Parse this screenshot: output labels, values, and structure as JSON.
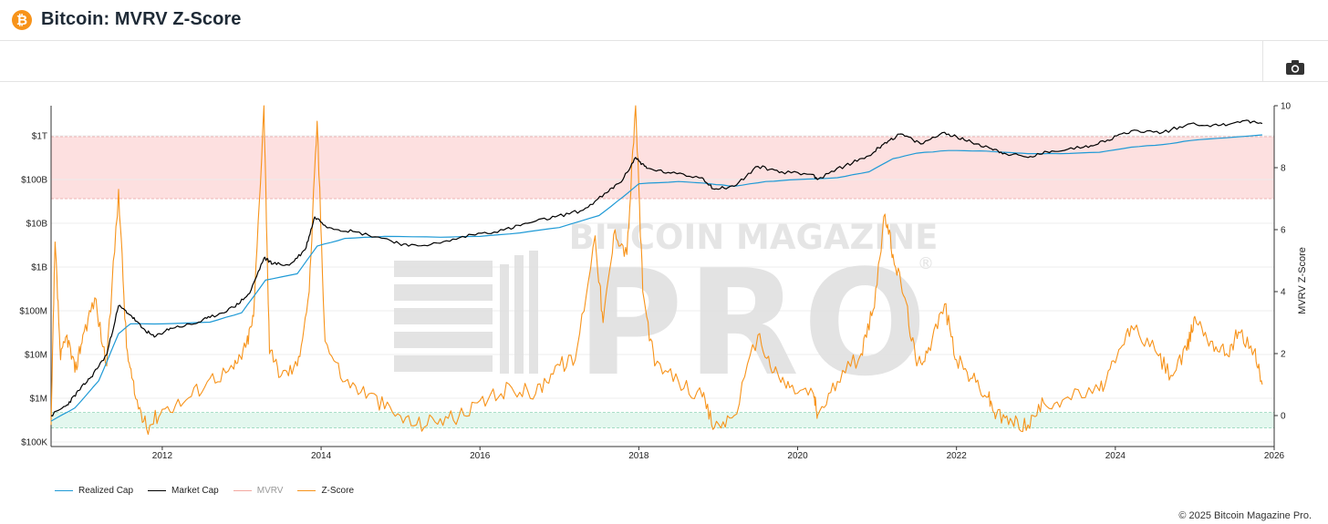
{
  "page": {
    "title": "Bitcoin: MVRV Z-Score",
    "logo_symbol": "₿",
    "logo_color": "#f7931a",
    "camera_icon": "camera-icon",
    "copyright": "© 2025 Bitcoin Magazine Pro."
  },
  "watermark": {
    "line1": "BITCOIN MAGAZINE",
    "line2": "PRO",
    "mark": "®"
  },
  "legend": [
    {
      "label": "Realized Cap",
      "color": "#1f9ad6"
    },
    {
      "label": "Market Cap",
      "color": "#000000"
    },
    {
      "label": "MVRV",
      "color": "#f3a7a0",
      "muted": true
    },
    {
      "label": "Z-Score",
      "color": "#f7931a"
    }
  ],
  "chart_data": {
    "type": "line",
    "left_axis": {
      "scale": "log",
      "ticks": [
        {
          "value": 100000.0,
          "label": "$100K"
        },
        {
          "value": 1000000.0,
          "label": "$1M"
        },
        {
          "value": 10000000.0,
          "label": "$10M"
        },
        {
          "value": 100000000.0,
          "label": "$100M"
        },
        {
          "value": 1000000000.0,
          "label": "$1B"
        },
        {
          "value": 10000000000.0,
          "label": "$10B"
        },
        {
          "value": 100000000000.0,
          "label": "$100B"
        },
        {
          "value": 1000000000000.0,
          "label": "$1T"
        }
      ]
    },
    "right_axis": {
      "title": "MVRV Z-Score",
      "range": [
        -1,
        10
      ],
      "ticks": [
        0,
        2,
        4,
        6,
        8,
        10
      ]
    },
    "x_axis": {
      "range": [
        2010.6,
        2026.0
      ],
      "ticks": [
        2012,
        2014,
        2016,
        2018,
        2020,
        2022,
        2024,
        2026
      ]
    },
    "bands": [
      {
        "name": "overvalued",
        "from": 7,
        "to": 9,
        "color": "#fde0e0"
      },
      {
        "name": "undervalued",
        "from": -0.4,
        "to": 0.1,
        "color": "#e3f7ee"
      }
    ],
    "series": [
      {
        "name": "Market Cap",
        "color": "#000000",
        "axis": "left",
        "points": [
          [
            2010.6,
            400000.0
          ],
          [
            2010.8,
            700000.0
          ],
          [
            2010.95,
            1500000.0
          ],
          [
            2011.1,
            3000000.0
          ],
          [
            2011.3,
            10000000.0
          ],
          [
            2011.45,
            130000000.0
          ],
          [
            2011.6,
            80000000.0
          ],
          [
            2011.75,
            40000000.0
          ],
          [
            2011.9,
            25000000.0
          ],
          [
            2012.1,
            40000000.0
          ],
          [
            2012.4,
            50000000.0
          ],
          [
            2012.6,
            70000000.0
          ],
          [
            2012.9,
            120000000.0
          ],
          [
            2013.1,
            250000000.0
          ],
          [
            2013.28,
            1600000000.0
          ],
          [
            2013.4,
            1200000000.0
          ],
          [
            2013.6,
            1100000000.0
          ],
          [
            2013.8,
            2500000000.0
          ],
          [
            2013.92,
            14000000000.0
          ],
          [
            2014.1,
            8000000000.0
          ],
          [
            2014.4,
            6500000000.0
          ],
          [
            2014.8,
            4500000000.0
          ],
          [
            2015.1,
            3000000000.0
          ],
          [
            2015.5,
            3500000000.0
          ],
          [
            2015.9,
            5500000000.0
          ],
          [
            2016.3,
            7000000000.0
          ],
          [
            2016.6,
            10000000000.0
          ],
          [
            2016.95,
            14000000000.0
          ],
          [
            2017.3,
            20000000000.0
          ],
          [
            2017.6,
            50000000000.0
          ],
          [
            2017.8,
            100000000000.0
          ],
          [
            2017.96,
            320000000000.0
          ],
          [
            2018.1,
            180000000000.0
          ],
          [
            2018.4,
            140000000000.0
          ],
          [
            2018.8,
            110000000000.0
          ],
          [
            2018.95,
            60000000000.0
          ],
          [
            2019.2,
            70000000000.0
          ],
          [
            2019.5,
            200000000000.0
          ],
          [
            2019.8,
            150000000000.0
          ],
          [
            2020.2,
            130000000000.0
          ],
          [
            2020.25,
            100000000000.0
          ],
          [
            2020.6,
            210000000000.0
          ],
          [
            2020.9,
            350000000000.0
          ],
          [
            2021.1,
            700000000000.0
          ],
          [
            2021.3,
            1100000000000.0
          ],
          [
            2021.55,
            650000000000.0
          ],
          [
            2021.85,
            1200000000000.0
          ],
          [
            2022.1,
            800000000000.0
          ],
          [
            2022.4,
            550000000000.0
          ],
          [
            2022.6,
            400000000000.0
          ],
          [
            2022.9,
            320000000000.0
          ],
          [
            2023.2,
            450000000000.0
          ],
          [
            2023.6,
            550000000000.0
          ],
          [
            2023.9,
            800000000000.0
          ],
          [
            2024.2,
            1300000000000.0
          ],
          [
            2024.6,
            1200000000000.0
          ],
          [
            2024.95,
            1900000000000.0
          ],
          [
            2025.3,
            1700000000000.0
          ],
          [
            2025.6,
            2200000000000.0
          ],
          [
            2025.85,
            1900000000000.0
          ]
        ]
      },
      {
        "name": "Realized Cap",
        "color": "#1f9ad6",
        "axis": "left",
        "points": [
          [
            2010.6,
            300000.0
          ],
          [
            2010.9,
            600000.0
          ],
          [
            2011.2,
            2500000.0
          ],
          [
            2011.45,
            30000000.0
          ],
          [
            2011.6,
            50000000.0
          ],
          [
            2012.0,
            50000000.0
          ],
          [
            2012.6,
            55000000.0
          ],
          [
            2013.0,
            90000000.0
          ],
          [
            2013.3,
            500000000.0
          ],
          [
            2013.7,
            700000000.0
          ],
          [
            2013.95,
            3000000000.0
          ],
          [
            2014.3,
            4500000000.0
          ],
          [
            2014.8,
            5000000000.0
          ],
          [
            2015.5,
            4800000000.0
          ],
          [
            2016.0,
            5000000000.0
          ],
          [
            2016.5,
            6000000000.0
          ],
          [
            2017.0,
            8000000000.0
          ],
          [
            2017.5,
            15000000000.0
          ],
          [
            2017.8,
            40000000000.0
          ],
          [
            2018.0,
            80000000000.0
          ],
          [
            2018.5,
            90000000000.0
          ],
          [
            2018.9,
            80000000000.0
          ],
          [
            2019.2,
            70000000000.0
          ],
          [
            2019.6,
            90000000000.0
          ],
          [
            2020.0,
            100000000000.0
          ],
          [
            2020.5,
            110000000000.0
          ],
          [
            2020.9,
            150000000000.0
          ],
          [
            2021.2,
            300000000000.0
          ],
          [
            2021.5,
            400000000000.0
          ],
          [
            2021.9,
            460000000000.0
          ],
          [
            2022.3,
            450000000000.0
          ],
          [
            2022.6,
            420000000000.0
          ],
          [
            2022.9,
            390000000000.0
          ],
          [
            2023.3,
            390000000000.0
          ],
          [
            2023.8,
            420000000000.0
          ],
          [
            2024.2,
            550000000000.0
          ],
          [
            2024.6,
            630000000000.0
          ],
          [
            2024.95,
            780000000000.0
          ],
          [
            2025.4,
            900000000000.0
          ],
          [
            2025.85,
            1050000000000.0
          ]
        ]
      },
      {
        "name": "Z-Score",
        "color": "#f7931a",
        "axis": "right",
        "points": [
          [
            2010.6,
            -0.3
          ],
          [
            2010.65,
            5.6
          ],
          [
            2010.72,
            1.8
          ],
          [
            2010.8,
            2.6
          ],
          [
            2010.9,
            1.4
          ],
          [
            2011.0,
            2.6
          ],
          [
            2011.15,
            3.8
          ],
          [
            2011.3,
            1.6
          ],
          [
            2011.45,
            7.3
          ],
          [
            2011.55,
            2.2
          ],
          [
            2011.65,
            0.7
          ],
          [
            2011.8,
            -0.4
          ],
          [
            2012.0,
            0.2
          ],
          [
            2012.3,
            0.5
          ],
          [
            2012.6,
            1.2
          ],
          [
            2012.9,
            1.5
          ],
          [
            2013.05,
            2.2
          ],
          [
            2013.15,
            3.2
          ],
          [
            2013.28,
            10.0
          ],
          [
            2013.35,
            2.0
          ],
          [
            2013.5,
            1.3
          ],
          [
            2013.7,
            1.6
          ],
          [
            2013.85,
            4.0
          ],
          [
            2013.95,
            9.5
          ],
          [
            2014.05,
            2.4
          ],
          [
            2014.3,
            1.1
          ],
          [
            2014.6,
            0.7
          ],
          [
            2014.9,
            0.1
          ],
          [
            2015.2,
            -0.3
          ],
          [
            2015.5,
            -0.1
          ],
          [
            2015.8,
            0.0
          ],
          [
            2016.1,
            0.5
          ],
          [
            2016.4,
            0.9
          ],
          [
            2016.7,
            0.7
          ],
          [
            2016.95,
            1.6
          ],
          [
            2017.2,
            1.8
          ],
          [
            2017.45,
            5.8
          ],
          [
            2017.55,
            3.0
          ],
          [
            2017.7,
            6.0
          ],
          [
            2017.85,
            5.2
          ],
          [
            2017.96,
            10.0
          ],
          [
            2018.05,
            4.0
          ],
          [
            2018.2,
            1.6
          ],
          [
            2018.5,
            1.1
          ],
          [
            2018.8,
            0.6
          ],
          [
            2018.95,
            -0.4
          ],
          [
            2019.2,
            0.0
          ],
          [
            2019.5,
            2.6
          ],
          [
            2019.7,
            1.4
          ],
          [
            2019.9,
            0.9
          ],
          [
            2020.2,
            0.7
          ],
          [
            2020.25,
            0.0
          ],
          [
            2020.5,
            1.1
          ],
          [
            2020.8,
            2.0
          ],
          [
            2020.95,
            3.4
          ],
          [
            2021.1,
            6.5
          ],
          [
            2021.2,
            5.2
          ],
          [
            2021.35,
            3.8
          ],
          [
            2021.5,
            1.6
          ],
          [
            2021.65,
            2.2
          ],
          [
            2021.85,
            3.6
          ],
          [
            2022.0,
            1.8
          ],
          [
            2022.2,
            1.2
          ],
          [
            2022.4,
            0.6
          ],
          [
            2022.5,
            0.0
          ],
          [
            2022.7,
            -0.2
          ],
          [
            2022.9,
            -0.3
          ],
          [
            2023.1,
            0.4
          ],
          [
            2023.4,
            0.6
          ],
          [
            2023.8,
            0.8
          ],
          [
            2024.0,
            1.7
          ],
          [
            2024.2,
            2.9
          ],
          [
            2024.5,
            2.1
          ],
          [
            2024.7,
            1.3
          ],
          [
            2024.9,
            2.1
          ],
          [
            2025.0,
            3.2
          ],
          [
            2025.2,
            2.4
          ],
          [
            2025.4,
            2.0
          ],
          [
            2025.55,
            2.7
          ],
          [
            2025.75,
            2.1
          ],
          [
            2025.85,
            1.0
          ]
        ]
      }
    ]
  }
}
